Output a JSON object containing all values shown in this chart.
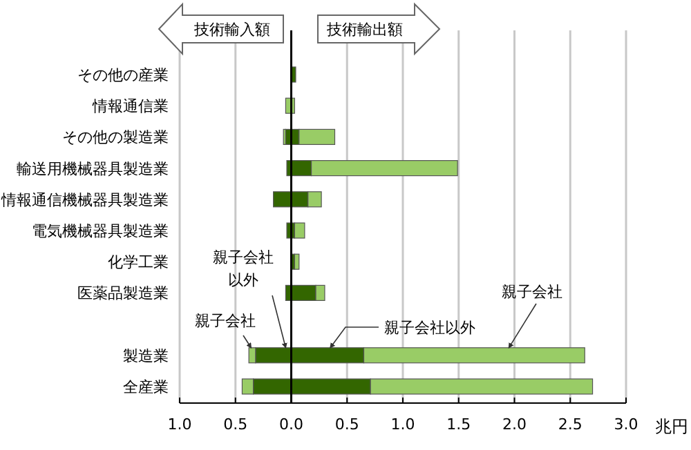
{
  "chart_data": {
    "type": "bar",
    "orientation": "horizontal",
    "stacked": true,
    "categories": [
      "その他の産業",
      "情報通信業",
      "その他の製造業",
      "輸送用機械器具製造業",
      "情報通信機械器具製造業",
      "電気機械器具製造業",
      "化学工業",
      "医薬品製造業",
      null,
      "製造業",
      "全産業"
    ],
    "series": [
      {
        "color": "#336600",
        "values": [
          null,
          null,
          -0.05,
          -0.04,
          -0.16,
          -0.04,
          null,
          -0.05,
          null,
          -0.32,
          -0.34
        ]
      },
      {
        "color": "#99cc66",
        "values": [
          null,
          -0.05,
          -0.02,
          null,
          null,
          null,
          null,
          null,
          null,
          -0.06,
          -0.1
        ]
      },
      {
        "color": "#336600",
        "values": [
          0.04,
          null,
          0.07,
          0.18,
          0.15,
          0.03,
          0.03,
          0.22,
          null,
          0.65,
          0.71
        ]
      },
      {
        "color": "#99cc66",
        "values": [
          null,
          0.03,
          0.32,
          1.31,
          0.12,
          0.09,
          0.04,
          0.08,
          null,
          1.98,
          1.99
        ]
      }
    ],
    "xlim": [
      -1.0,
      3.0
    ],
    "xticks": [
      {
        "value": -1.0,
        "label": "1.0"
      },
      {
        "value": -0.5,
        "label": "0.5"
      },
      {
        "value": 0,
        "label": "0.0"
      },
      {
        "value": 0.5,
        "label": "0.5"
      },
      {
        "value": 1.0,
        "label": "1.0"
      },
      {
        "value": 1.5,
        "label": "1.5"
      },
      {
        "value": 2.0,
        "label": "2.0"
      },
      {
        "value": 2.5,
        "label": "2.5"
      },
      {
        "value": 3.0,
        "label": "3.0"
      }
    ],
    "xlabel": "兆円",
    "grid": "x",
    "annotations": [
      "技術輸入額",
      "技術輸出額",
      {
        "text": "親子会社以外",
        "x": -0.05,
        "y": "製造業"
      },
      {
        "text": "親子会社",
        "x": -0.36,
        "y": "製造業"
      },
      {
        "text": "親子会社以外",
        "x": 0.35,
        "y": "製造業"
      },
      {
        "text": "親子会社",
        "x": 1.95,
        "y": "製造業"
      }
    ]
  }
}
